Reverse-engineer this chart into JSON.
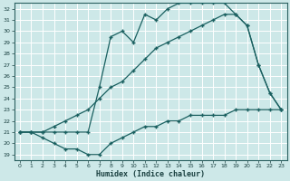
{
  "xlabel": "Humidex (Indice chaleur)",
  "bg_color": "#cde8e8",
  "grid_color": "#b8d8d8",
  "line_color": "#1a6060",
  "xlim": [
    -0.5,
    23.5
  ],
  "ylim": [
    18.5,
    32.5
  ],
  "xticks": [
    0,
    1,
    2,
    3,
    4,
    5,
    6,
    7,
    8,
    9,
    10,
    11,
    12,
    13,
    14,
    15,
    16,
    17,
    18,
    19,
    20,
    21,
    22,
    23
  ],
  "yticks": [
    19,
    20,
    21,
    22,
    23,
    24,
    25,
    26,
    27,
    28,
    29,
    30,
    31,
    32
  ],
  "line1_x": [
    0,
    1,
    2,
    3,
    4,
    5,
    6,
    7,
    8,
    9,
    10,
    11,
    12,
    13,
    14,
    15,
    16,
    17,
    18,
    19,
    20,
    21,
    22,
    23
  ],
  "line1_y": [
    21.0,
    21.0,
    20.5,
    20.0,
    19.5,
    19.5,
    19.0,
    19.0,
    20.0,
    20.5,
    21.0,
    21.5,
    21.5,
    22.0,
    22.0,
    22.5,
    22.5,
    22.5,
    22.5,
    23.0,
    23.0,
    23.0,
    23.0,
    23.0
  ],
  "line2_x": [
    0,
    1,
    2,
    3,
    4,
    5,
    6,
    7,
    8,
    9,
    10,
    11,
    12,
    13,
    14,
    15,
    16,
    17,
    18,
    19,
    20,
    21,
    22,
    23
  ],
  "line2_y": [
    21.0,
    21.0,
    21.0,
    21.5,
    22.0,
    22.5,
    23.0,
    24.0,
    25.0,
    25.5,
    26.5,
    27.5,
    28.5,
    29.0,
    29.5,
    30.0,
    30.5,
    31.0,
    31.5,
    31.5,
    30.5,
    27.0,
    24.5,
    23.0
  ],
  "line3_x": [
    0,
    1,
    2,
    3,
    4,
    5,
    6,
    7,
    8,
    9,
    10,
    11,
    12,
    13,
    14,
    15,
    16,
    17,
    18,
    19,
    20,
    21,
    22,
    23
  ],
  "line3_y": [
    21.0,
    21.0,
    21.0,
    21.0,
    21.0,
    21.0,
    21.0,
    25.0,
    29.5,
    30.0,
    29.0,
    31.5,
    31.0,
    32.0,
    32.5,
    32.5,
    32.5,
    32.5,
    32.5,
    31.5,
    30.5,
    27.0,
    24.5,
    23.0
  ]
}
